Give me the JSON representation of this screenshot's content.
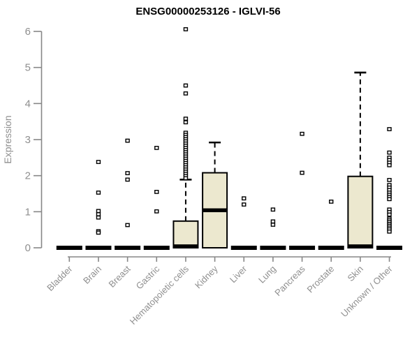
{
  "page": {
    "background_color": "#ffffff"
  },
  "chart_data": {
    "type": "boxplot",
    "title": "ENSG00000253126 - IGLVI-56",
    "ylabel": "Expression",
    "xlabel": "",
    "ylim": [
      0,
      6
    ],
    "yticks": [
      0,
      1,
      2,
      3,
      4,
      5,
      6
    ],
    "grid": false,
    "legend": null,
    "colors": {
      "box_fill": "#ece8cf",
      "box_stroke": "#000000",
      "axis_color": "#878787",
      "label_color": "#8f8f8f",
      "outlier_fill": "#ffffff",
      "outlier_stroke": "#000000"
    },
    "categories": [
      {
        "label": "Bladder",
        "q1": 0,
        "median": 0,
        "q3": 0,
        "whisker_low": 0,
        "whisker_high": 0,
        "outliers": []
      },
      {
        "label": "Brain",
        "q1": 0,
        "median": 0,
        "q3": 0,
        "whisker_low": 0,
        "whisker_high": 0,
        "outliers": [
          2.38,
          1.53,
          1.02,
          0.93,
          0.84,
          0.46,
          0.42
        ]
      },
      {
        "label": "Breast",
        "q1": 0,
        "median": 0,
        "q3": 0,
        "whisker_low": 0,
        "whisker_high": 0,
        "outliers": [
          2.97,
          2.07,
          1.89,
          0.63
        ]
      },
      {
        "label": "Gastric",
        "q1": 0,
        "median": 0,
        "q3": 0,
        "whisker_low": 0,
        "whisker_high": 0,
        "outliers": [
          2.77,
          1.55,
          1.01
        ]
      },
      {
        "label": "Hematopoietic cells",
        "q1": 0,
        "median": 0.04,
        "q3": 0.74,
        "whisker_low": 0,
        "whisker_high": 1.89,
        "outliers": [
          6.06,
          4.5,
          4.28,
          3.58,
          3.48,
          3.19,
          3.13,
          3.07,
          3.01,
          2.95,
          2.89,
          2.83,
          2.77,
          2.71,
          2.65,
          2.59,
          2.53,
          2.47,
          2.41,
          2.35,
          2.29,
          2.23,
          2.17,
          2.11,
          2.05,
          1.99,
          1.93
        ]
      },
      {
        "label": "Kidney",
        "q1": 0,
        "median": 1.04,
        "q3": 2.08,
        "whisker_low": 0,
        "whisker_high": 2.92,
        "outliers": []
      },
      {
        "label": "Liver",
        "q1": 0,
        "median": 0,
        "q3": 0,
        "whisker_low": 0,
        "whisker_high": 0,
        "outliers": [
          1.37,
          1.2
        ]
      },
      {
        "label": "Lung",
        "q1": 0,
        "median": 0,
        "q3": 0,
        "whisker_low": 0,
        "whisker_high": 0,
        "outliers": [
          1.06,
          0.73,
          0.64
        ]
      },
      {
        "label": "Pancreas",
        "q1": 0,
        "median": 0,
        "q3": 0,
        "whisker_low": 0,
        "whisker_high": 0,
        "outliers": [
          3.16,
          2.08
        ]
      },
      {
        "label": "Prostate",
        "q1": 0,
        "median": 0,
        "q3": 0,
        "whisker_low": 0,
        "whisker_high": 0,
        "outliers": [
          1.28
        ]
      },
      {
        "label": "Skin",
        "q1": 0,
        "median": 0.04,
        "q3": 1.98,
        "whisker_low": 0,
        "whisker_high": 4.86,
        "outliers": []
      },
      {
        "label": "Unknown / Other",
        "q1": 0,
        "median": 0,
        "q3": 0,
        "whisker_low": 0,
        "whisker_high": 0,
        "outliers": [
          3.29,
          2.64,
          2.5,
          2.43,
          2.36,
          2.29,
          1.88,
          1.74,
          1.67,
          1.6,
          1.53,
          1.47,
          1.41,
          1.35,
          1.06,
          0.99,
          0.92,
          0.81,
          0.76,
          0.71,
          0.66,
          0.61,
          0.56,
          0.51,
          0.45
        ]
      }
    ]
  }
}
